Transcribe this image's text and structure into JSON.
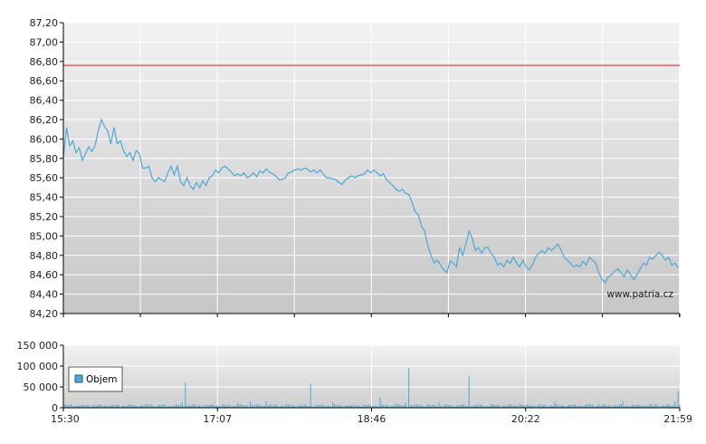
{
  "watermark": "www.patria.cz",
  "colors": {
    "price_line": "#4aa9d6",
    "reference_line": "#d62828",
    "volume_bar": "#4aa9d6",
    "grid": "#ffffff",
    "axis": "#000000"
  },
  "chart_data": [
    {
      "type": "line",
      "name": "price",
      "ylim": [
        84.2,
        87.2
      ],
      "y_ticks": [
        "84,20",
        "84,40",
        "84,60",
        "84,80",
        "85,00",
        "85,20",
        "85,40",
        "85,60",
        "85,80",
        "86,00",
        "86,20",
        "86,40",
        "86,60",
        "86,80",
        "87,00",
        "87,20"
      ],
      "reference_line": 86.76,
      "x_range_minutes": [
        0,
        389
      ],
      "points": [
        [
          0,
          85.81
        ],
        [
          2,
          86.12
        ],
        [
          4,
          85.93
        ],
        [
          6,
          85.98
        ],
        [
          8,
          85.86
        ],
        [
          10,
          85.91
        ],
        [
          12,
          85.78
        ],
        [
          14,
          85.85
        ],
        [
          16,
          85.92
        ],
        [
          18,
          85.87
        ],
        [
          20,
          85.93
        ],
        [
          22,
          86.08
        ],
        [
          24,
          86.2
        ],
        [
          26,
          86.13
        ],
        [
          28,
          86.08
        ],
        [
          30,
          85.95
        ],
        [
          32,
          86.12
        ],
        [
          34,
          85.95
        ],
        [
          36,
          85.98
        ],
        [
          38,
          85.88
        ],
        [
          40,
          85.82
        ],
        [
          42,
          85.86
        ],
        [
          44,
          85.78
        ],
        [
          46,
          85.88
        ],
        [
          48,
          85.85
        ],
        [
          50,
          85.7
        ],
        [
          52,
          85.7
        ],
        [
          54,
          85.72
        ],
        [
          56,
          85.6
        ],
        [
          58,
          85.56
        ],
        [
          60,
          85.6
        ],
        [
          62,
          85.58
        ],
        [
          64,
          85.56
        ],
        [
          66,
          85.65
        ],
        [
          68,
          85.72
        ],
        [
          70,
          85.63
        ],
        [
          72,
          85.72
        ],
        [
          74,
          85.56
        ],
        [
          76,
          85.52
        ],
        [
          78,
          85.6
        ],
        [
          80,
          85.52
        ],
        [
          82,
          85.48
        ],
        [
          84,
          85.55
        ],
        [
          86,
          85.5
        ],
        [
          88,
          85.57
        ],
        [
          90,
          85.52
        ],
        [
          92,
          85.6
        ],
        [
          94,
          85.62
        ],
        [
          96,
          85.68
        ],
        [
          98,
          85.65
        ],
        [
          100,
          85.7
        ],
        [
          102,
          85.72
        ],
        [
          104,
          85.69
        ],
        [
          106,
          85.66
        ],
        [
          108,
          85.62
        ],
        [
          110,
          85.64
        ],
        [
          112,
          85.62
        ],
        [
          114,
          85.65
        ],
        [
          116,
          85.6
        ],
        [
          118,
          85.62
        ],
        [
          120,
          85.65
        ],
        [
          122,
          85.61
        ],
        [
          124,
          85.67
        ],
        [
          126,
          85.65
        ],
        [
          128,
          85.69
        ],
        [
          130,
          85.66
        ],
        [
          132,
          85.64
        ],
        [
          134,
          85.62
        ],
        [
          136,
          85.58
        ],
        [
          138,
          85.58
        ],
        [
          140,
          85.6
        ],
        [
          142,
          85.65
        ],
        [
          144,
          85.66
        ],
        [
          146,
          85.68
        ],
        [
          148,
          85.69
        ],
        [
          150,
          85.68
        ],
        [
          152,
          85.7
        ],
        [
          154,
          85.69
        ],
        [
          156,
          85.66
        ],
        [
          158,
          85.68
        ],
        [
          160,
          85.65
        ],
        [
          162,
          85.68
        ],
        [
          164,
          85.64
        ],
        [
          166,
          85.6
        ],
        [
          168,
          85.6
        ],
        [
          170,
          85.59
        ],
        [
          172,
          85.58
        ],
        [
          174,
          85.55
        ],
        [
          176,
          85.53
        ],
        [
          178,
          85.58
        ],
        [
          180,
          85.6
        ],
        [
          182,
          85.62
        ],
        [
          184,
          85.6
        ],
        [
          186,
          85.62
        ],
        [
          188,
          85.63
        ],
        [
          190,
          85.64
        ],
        [
          192,
          85.68
        ],
        [
          194,
          85.65
        ],
        [
          196,
          85.68
        ],
        [
          198,
          85.65
        ],
        [
          200,
          85.62
        ],
        [
          202,
          85.64
        ],
        [
          204,
          85.58
        ],
        [
          206,
          85.55
        ],
        [
          208,
          85.52
        ],
        [
          210,
          85.48
        ],
        [
          212,
          85.46
        ],
        [
          214,
          85.48
        ],
        [
          216,
          85.44
        ],
        [
          218,
          85.43
        ],
        [
          220,
          85.35
        ],
        [
          222,
          85.25
        ],
        [
          224,
          85.22
        ],
        [
          226,
          85.1
        ],
        [
          228,
          85.05
        ],
        [
          230,
          84.9
        ],
        [
          232,
          84.8
        ],
        [
          234,
          84.72
        ],
        [
          236,
          84.75
        ],
        [
          238,
          84.7
        ],
        [
          240,
          84.65
        ],
        [
          242,
          84.62
        ],
        [
          244,
          84.74
        ],
        [
          246,
          84.72
        ],
        [
          248,
          84.68
        ],
        [
          250,
          84.88
        ],
        [
          252,
          84.8
        ],
        [
          254,
          84.92
        ],
        [
          256,
          85.05
        ],
        [
          258,
          84.98
        ],
        [
          260,
          84.85
        ],
        [
          262,
          84.88
        ],
        [
          264,
          84.82
        ],
        [
          266,
          84.88
        ],
        [
          268,
          84.88
        ],
        [
          270,
          84.82
        ],
        [
          272,
          84.78
        ],
        [
          274,
          84.7
        ],
        [
          276,
          84.72
        ],
        [
          278,
          84.68
        ],
        [
          280,
          84.75
        ],
        [
          282,
          84.72
        ],
        [
          284,
          84.78
        ],
        [
          286,
          84.72
        ],
        [
          288,
          84.68
        ],
        [
          290,
          84.75
        ],
        [
          292,
          84.68
        ],
        [
          294,
          84.65
        ],
        [
          296,
          84.7
        ],
        [
          298,
          84.78
        ],
        [
          300,
          84.82
        ],
        [
          302,
          84.85
        ],
        [
          304,
          84.82
        ],
        [
          306,
          84.88
        ],
        [
          308,
          84.85
        ],
        [
          310,
          84.88
        ],
        [
          312,
          84.92
        ],
        [
          314,
          84.86
        ],
        [
          316,
          84.78
        ],
        [
          318,
          84.75
        ],
        [
          320,
          84.72
        ],
        [
          322,
          84.68
        ],
        [
          324,
          84.7
        ],
        [
          326,
          84.68
        ],
        [
          328,
          84.74
        ],
        [
          330,
          84.7
        ],
        [
          332,
          84.78
        ],
        [
          334,
          84.75
        ],
        [
          336,
          84.72
        ],
        [
          338,
          84.62
        ],
        [
          340,
          84.55
        ],
        [
          342,
          84.52
        ],
        [
          344,
          84.58
        ],
        [
          346,
          84.6
        ],
        [
          348,
          84.64
        ],
        [
          350,
          84.66
        ],
        [
          352,
          84.62
        ],
        [
          354,
          84.58
        ],
        [
          356,
          84.65
        ],
        [
          358,
          84.6
        ],
        [
          360,
          84.55
        ],
        [
          362,
          84.6
        ],
        [
          364,
          84.66
        ],
        [
          366,
          84.72
        ],
        [
          368,
          84.7
        ],
        [
          370,
          84.78
        ],
        [
          372,
          84.76
        ],
        [
          374,
          84.8
        ],
        [
          376,
          84.83
        ],
        [
          378,
          84.8
        ],
        [
          380,
          84.75
        ],
        [
          382,
          84.78
        ],
        [
          384,
          84.7
        ],
        [
          386,
          84.72
        ],
        [
          388,
          84.67
        ]
      ]
    },
    {
      "type": "bar",
      "name": "volume",
      "ylim": [
        0,
        150000
      ],
      "y_ticks": [
        "0",
        "50 000",
        "100 000",
        "150 000"
      ],
      "legend": "Objem",
      "legend_placement": "left",
      "x_ticks": [
        "15:30",
        "17:07",
        "18:46",
        "20:22",
        "21:59"
      ],
      "spikes": [
        [
          5,
          8000
        ],
        [
          12,
          6000
        ],
        [
          28,
          5000
        ],
        [
          55,
          9000
        ],
        [
          75,
          12000
        ],
        [
          77,
          60000
        ],
        [
          95,
          6000
        ],
        [
          110,
          12000
        ],
        [
          118,
          16000
        ],
        [
          128,
          15000
        ],
        [
          140,
          6000
        ],
        [
          156,
          58000
        ],
        [
          170,
          12000
        ],
        [
          182,
          6000
        ],
        [
          200,
          26000
        ],
        [
          210,
          10000
        ],
        [
          216,
          12000
        ],
        [
          218,
          95000
        ],
        [
          225,
          8000
        ],
        [
          237,
          12000
        ],
        [
          250,
          6000
        ],
        [
          256,
          75000
        ],
        [
          270,
          9000
        ],
        [
          288,
          9000
        ],
        [
          295,
          6000
        ],
        [
          310,
          14000
        ],
        [
          320,
          7000
        ],
        [
          332,
          10000
        ],
        [
          338,
          9000
        ],
        [
          340,
          6000
        ],
        [
          353,
          16000
        ],
        [
          365,
          6000
        ],
        [
          374,
          9000
        ],
        [
          382,
          8000
        ],
        [
          386,
          15000
        ],
        [
          388,
          40000
        ]
      ],
      "baseline_volume": 5500
    }
  ]
}
